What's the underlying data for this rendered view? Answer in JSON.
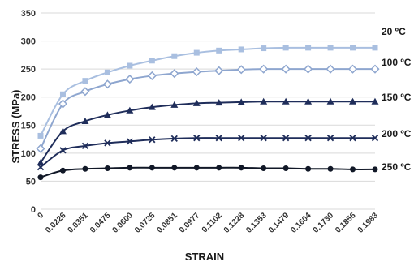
{
  "chart_data": {
    "type": "line",
    "xlabel": "STRAIN",
    "ylabel": "STRESS (MPa)",
    "ylim": [
      0,
      350
    ],
    "yticks": [
      "0",
      "50",
      "100",
      "150",
      "200",
      "250",
      "300",
      "350"
    ],
    "grid": true,
    "x": [
      "0",
      "0.0226",
      "0.0351",
      "0.0475",
      "0.0600",
      "0.0726",
      "0.0851",
      "0.0977",
      "0.1102",
      "0.1228",
      "0.1353",
      "0.1479",
      "0.1604",
      "0.1730",
      "0.1856",
      "0.1983"
    ],
    "series": [
      {
        "name": "20 ºC",
        "color": "#a9bfe0",
        "marker": "square",
        "values": [
          131,
          205,
          229,
          244,
          256,
          265,
          273,
          279,
          283,
          285,
          287,
          288,
          288,
          288,
          288,
          288
        ]
      },
      {
        "name": "100 ºC",
        "color": "#8ea6cf",
        "marker": "diamond",
        "values": [
          108,
          188,
          210,
          223,
          232,
          238,
          242,
          245,
          247,
          249,
          250,
          250,
          250,
          250,
          250,
          250
        ]
      },
      {
        "name": "150 ºC",
        "color": "#1f2d5a",
        "marker": "triangle",
        "values": [
          83,
          139,
          157,
          168,
          176,
          182,
          186,
          189,
          190,
          191,
          192,
          192,
          192,
          192,
          192,
          192
        ]
      },
      {
        "name": "200 ºC",
        "color": "#1f2d5a",
        "marker": "x",
        "values": [
          75,
          105,
          113,
          118,
          121,
          124,
          126,
          127,
          127,
          127,
          127,
          127,
          127,
          127,
          127,
          127
        ]
      },
      {
        "name": "250 ºC",
        "color": "#111827",
        "marker": "circle",
        "values": [
          57,
          69,
          72,
          73,
          74,
          74,
          74,
          74,
          74,
          74,
          73,
          73,
          72,
          72,
          71,
          71
        ]
      }
    ]
  }
}
